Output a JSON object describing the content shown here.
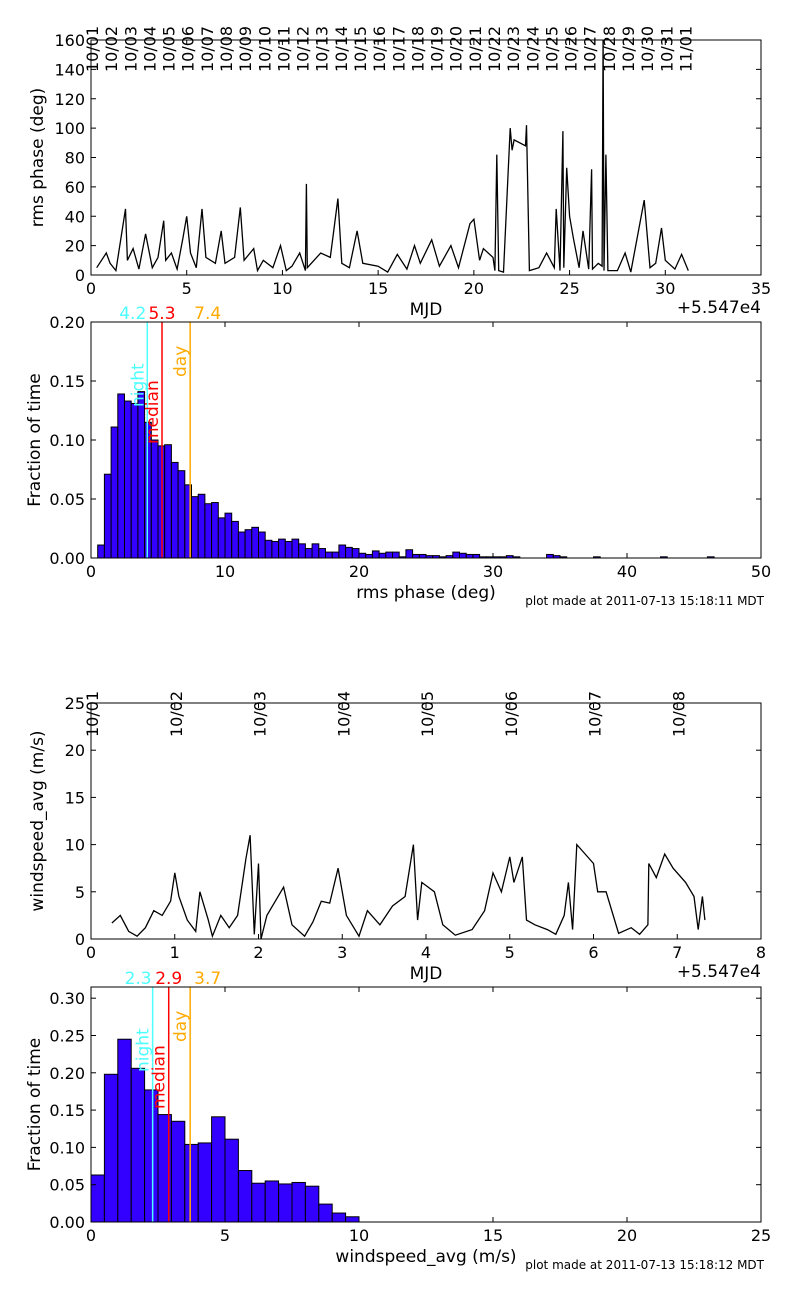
{
  "chart_data": [
    {
      "type": "line",
      "ylabel": "rms phase (deg)",
      "xlabel": "MJD",
      "x_offset_label": "+5.547e4",
      "xlim": [
        0,
        35
      ],
      "ylim": [
        0,
        160
      ],
      "xticks": [
        0,
        5,
        10,
        15,
        20,
        25,
        30,
        35
      ],
      "yticks": [
        0,
        20,
        40,
        60,
        80,
        100,
        120,
        140,
        160
      ],
      "date_labels": [
        "10/01",
        "10/02",
        "10/03",
        "10/04",
        "10/05",
        "10/06",
        "10/07",
        "10/08",
        "10/09",
        "10/10",
        "10/11",
        "10/12",
        "10/13",
        "10/14",
        "10/15",
        "10/16",
        "10/17",
        "10/18",
        "10/19",
        "10/20",
        "10/21",
        "10/22",
        "10/23",
        "10/24",
        "10/25",
        "10/26",
        "10/27",
        "10/28",
        "10/29",
        "10/30",
        "10/31",
        "11/01"
      ],
      "color": "#000000",
      "points": [
        [
          0.3,
          5
        ],
        [
          0.8,
          15
        ],
        [
          1.0,
          8
        ],
        [
          1.3,
          3
        ],
        [
          1.8,
          45
        ],
        [
          1.9,
          10
        ],
        [
          2.2,
          18
        ],
        [
          2.5,
          4
        ],
        [
          2.85,
          28
        ],
        [
          3.2,
          5
        ],
        [
          3.5,
          12
        ],
        [
          3.8,
          37
        ],
        [
          3.9,
          10
        ],
        [
          4.2,
          15
        ],
        [
          4.5,
          4
        ],
        [
          4.8,
          25
        ],
        [
          5.0,
          40
        ],
        [
          5.2,
          15
        ],
        [
          5.5,
          5
        ],
        [
          5.8,
          45
        ],
        [
          6.0,
          12
        ],
        [
          6.5,
          8
        ],
        [
          6.8,
          30
        ],
        [
          7.0,
          8
        ],
        [
          7.5,
          12
        ],
        [
          7.8,
          46
        ],
        [
          8.0,
          10
        ],
        [
          8.5,
          18
        ],
        [
          8.7,
          3
        ],
        [
          9.0,
          10
        ],
        [
          9.5,
          5
        ],
        [
          9.9,
          20
        ],
        [
          10.2,
          3
        ],
        [
          10.5,
          6
        ],
        [
          10.9,
          15
        ],
        [
          11.2,
          3
        ],
        [
          11.25,
          62
        ],
        [
          11.3,
          5
        ],
        [
          12.0,
          15
        ],
        [
          12.5,
          12
        ],
        [
          12.9,
          52
        ],
        [
          13.1,
          8
        ],
        [
          13.5,
          5
        ],
        [
          13.9,
          30
        ],
        [
          14.2,
          8
        ],
        [
          15.0,
          6
        ],
        [
          15.5,
          2
        ],
        [
          16.0,
          14
        ],
        [
          16.5,
          4
        ],
        [
          16.9,
          20
        ],
        [
          17.2,
          8
        ],
        [
          17.8,
          24
        ],
        [
          18.2,
          6
        ],
        [
          18.8,
          20
        ],
        [
          19.2,
          5
        ],
        [
          19.8,
          35
        ],
        [
          20.0,
          38
        ],
        [
          20.3,
          10
        ],
        [
          20.5,
          18
        ],
        [
          21.0,
          12
        ],
        [
          21.1,
          3
        ],
        [
          21.2,
          82
        ],
        [
          21.3,
          3
        ],
        [
          21.55,
          2
        ],
        [
          21.9,
          100
        ],
        [
          22.0,
          85
        ],
        [
          22.1,
          92
        ],
        [
          22.7,
          88
        ],
        [
          22.75,
          102
        ],
        [
          22.9,
          3
        ],
        [
          23.4,
          5
        ],
        [
          23.8,
          15
        ],
        [
          24.2,
          5
        ],
        [
          24.3,
          45
        ],
        [
          24.5,
          3
        ],
        [
          24.65,
          98
        ],
        [
          24.7,
          5
        ],
        [
          24.85,
          73
        ],
        [
          25.0,
          40
        ],
        [
          25.2,
          25
        ],
        [
          25.5,
          5
        ],
        [
          25.7,
          30
        ],
        [
          26.0,
          4
        ],
        [
          26.15,
          72
        ],
        [
          26.2,
          4
        ],
        [
          26.5,
          8
        ],
        [
          26.7,
          6
        ],
        [
          26.75,
          165
        ],
        [
          26.8,
          3
        ],
        [
          26.9,
          82
        ],
        [
          27.0,
          3
        ],
        [
          27.5,
          3
        ],
        [
          27.9,
          15
        ],
        [
          28.2,
          2
        ],
        [
          28.9,
          51
        ],
        [
          29.2,
          5
        ],
        [
          29.5,
          8
        ],
        [
          29.8,
          32
        ],
        [
          30.0,
          10
        ],
        [
          30.5,
          4
        ],
        [
          30.85,
          14
        ],
        [
          31.2,
          3
        ]
      ]
    },
    {
      "type": "bar",
      "ylabel": "Fraction of time",
      "xlabel": "rms phase (deg)",
      "xlim": [
        0,
        50
      ],
      "ylim": [
        0,
        0.2
      ],
      "xticks": [
        0,
        10,
        20,
        30,
        40,
        50
      ],
      "yticks": [
        "0.00",
        "0.05",
        "0.10",
        "0.15",
        "0.20"
      ],
      "bin_width": 0.5,
      "bar_color": "#3300ff",
      "values": [
        0,
        0.011,
        0.071,
        0.111,
        0.139,
        0.133,
        0.131,
        0.141,
        0.115,
        0.1,
        0.095,
        0.096,
        0.081,
        0.074,
        0.062,
        0.052,
        0.054,
        0.046,
        0.047,
        0.034,
        0.038,
        0.031,
        0.022,
        0.024,
        0.026,
        0.022,
        0.015,
        0.014,
        0.016,
        0.014,
        0.016,
        0.012,
        0.008,
        0.012,
        0.008,
        0.005,
        0.005,
        0.011,
        0.009,
        0.008,
        0.004,
        0.003,
        0.006,
        0.004,
        0.005,
        0.005,
        0.001,
        0.007,
        0.003,
        0.003,
        0.002,
        0.002,
        0.001,
        0.002,
        0.005,
        0.004,
        0.003,
        0.003,
        0.001,
        0.001,
        0.001,
        0.001,
        0.002,
        0.001,
        0,
        0,
        0,
        0,
        0.003,
        0.002,
        0.001,
        0,
        0,
        0,
        0,
        0.001,
        0,
        0,
        0,
        0,
        0,
        0,
        0,
        0,
        0,
        0.001,
        0,
        0,
        0,
        0,
        0,
        0,
        0.001,
        0,
        0,
        0,
        0,
        0,
        0,
        0
      ],
      "markers": [
        {
          "name": "night",
          "value": 4.2,
          "label": "4.2",
          "color": "#4dffff"
        },
        {
          "name": "median",
          "value": 5.3,
          "label": "5.3",
          "color": "#ff0000"
        },
        {
          "name": "day",
          "value": 7.4,
          "label": "7.4",
          "color": "#ffaa00"
        }
      ],
      "footnote": "plot made at 2011-07-13 15:18:11 MDT"
    },
    {
      "type": "line",
      "ylabel": "windspeed_avg (m/s)",
      "xlabel": "MJD",
      "x_offset_label": "+5.547e4",
      "xlim": [
        0,
        8
      ],
      "ylim": [
        0,
        25
      ],
      "xticks": [
        0,
        1,
        2,
        3,
        4,
        5,
        6,
        7,
        8
      ],
      "yticks": [
        0,
        5,
        10,
        15,
        20,
        25
      ],
      "date_labels": [
        "10/01",
        "10/02",
        "10/03",
        "10/04",
        "10/05",
        "10/06",
        "10/07",
        "10/08"
      ],
      "color": "#000000",
      "points": [
        [
          0.25,
          1.7
        ],
        [
          0.35,
          2.5
        ],
        [
          0.45,
          0.8
        ],
        [
          0.55,
          0.3
        ],
        [
          0.65,
          1.2
        ],
        [
          0.75,
          3
        ],
        [
          0.85,
          2.5
        ],
        [
          0.95,
          4
        ],
        [
          1.0,
          7
        ],
        [
          1.05,
          4.5
        ],
        [
          1.15,
          2
        ],
        [
          1.25,
          0.8
        ],
        [
          1.3,
          5
        ],
        [
          1.4,
          2
        ],
        [
          1.45,
          0.3
        ],
        [
          1.55,
          2.5
        ],
        [
          1.65,
          1.2
        ],
        [
          1.75,
          2.5
        ],
        [
          1.85,
          8.5
        ],
        [
          1.9,
          11
        ],
        [
          1.95,
          0.5
        ],
        [
          2.0,
          8
        ],
        [
          2.03,
          0
        ],
        [
          2.1,
          2.5
        ],
        [
          2.2,
          4
        ],
        [
          2.3,
          5.5
        ],
        [
          2.4,
          1.5
        ],
        [
          2.55,
          0.3
        ],
        [
          2.65,
          1.8
        ],
        [
          2.75,
          4
        ],
        [
          2.85,
          3.8
        ],
        [
          2.95,
          7.5
        ],
        [
          3.05,
          2.5
        ],
        [
          3.2,
          0.3
        ],
        [
          3.3,
          3
        ],
        [
          3.45,
          1.5
        ],
        [
          3.6,
          3.5
        ],
        [
          3.75,
          4.5
        ],
        [
          3.85,
          10
        ],
        [
          3.9,
          2
        ],
        [
          3.95,
          6
        ],
        [
          4.1,
          5
        ],
        [
          4.2,
          1.5
        ],
        [
          4.35,
          0.4
        ],
        [
          4.55,
          1
        ],
        [
          4.7,
          3
        ],
        [
          4.8,
          7
        ],
        [
          4.9,
          5
        ],
        [
          5.0,
          8.7
        ],
        [
          5.05,
          6
        ],
        [
          5.15,
          8.7
        ],
        [
          5.2,
          2
        ],
        [
          5.3,
          1.5
        ],
        [
          5.45,
          1
        ],
        [
          5.55,
          0.5
        ],
        [
          5.65,
          2.5
        ],
        [
          5.7,
          6
        ],
        [
          5.75,
          1
        ],
        [
          5.8,
          10
        ],
        [
          5.9,
          9
        ],
        [
          6.0,
          8
        ],
        [
          6.05,
          5
        ],
        [
          6.15,
          5
        ],
        [
          6.3,
          0.6
        ],
        [
          6.45,
          1.2
        ],
        [
          6.55,
          0.5
        ],
        [
          6.65,
          1.5
        ],
        [
          6.66,
          8
        ],
        [
          6.75,
          6.5
        ],
        [
          6.85,
          9
        ],
        [
          6.95,
          7.5
        ],
        [
          7.1,
          6
        ],
        [
          7.2,
          4.5
        ],
        [
          7.25,
          1
        ],
        [
          7.3,
          4.5
        ],
        [
          7.33,
          2
        ]
      ]
    },
    {
      "type": "bar",
      "ylabel": "Fraction of time",
      "xlabel": "windspeed_avg (m/s)",
      "xlim": [
        0,
        25
      ],
      "ylim": [
        0,
        0.315
      ],
      "xticks": [
        0,
        5,
        10,
        15,
        20,
        25
      ],
      "yticks": [
        "0.00",
        "0.05",
        "0.10",
        "0.15",
        "0.20",
        "0.25",
        "0.30"
      ],
      "bin_width": 0.5,
      "bar_color": "#3300ff",
      "values": [
        0.063,
        0.198,
        0.245,
        0.206,
        0.177,
        0.144,
        0.135,
        0.104,
        0.106,
        0.141,
        0.111,
        0.069,
        0.052,
        0.055,
        0.051,
        0.053,
        0.048,
        0.024,
        0.012,
        0.007
      ],
      "markers": [
        {
          "name": "night",
          "value": 2.3,
          "label": "2.3",
          "color": "#4dffff"
        },
        {
          "name": "median",
          "value": 2.9,
          "label": "2.9",
          "color": "#ff0000"
        },
        {
          "name": "day",
          "value": 3.7,
          "label": "3.7",
          "color": "#ffaa00"
        }
      ],
      "footnote": "plot made at 2011-07-13 15:18:12 MDT"
    }
  ]
}
